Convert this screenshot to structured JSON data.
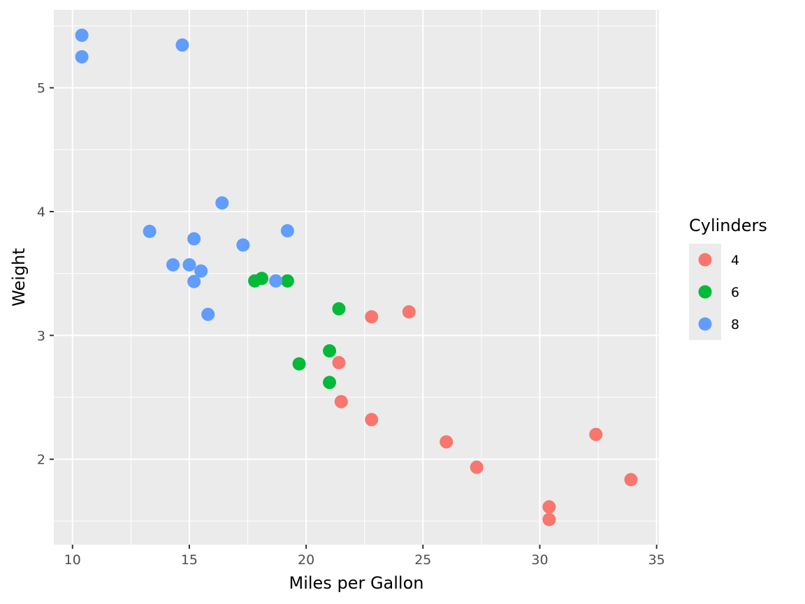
{
  "chart_data": {
    "type": "scatter",
    "xlabel": "Miles per Gallon",
    "ylabel": "Weight",
    "xlim": [
      9.2,
      35.1
    ],
    "ylim": [
      1.31,
      5.63
    ],
    "x_ticks": [
      10,
      15,
      20,
      25,
      30,
      35
    ],
    "y_ticks": [
      2,
      3,
      4,
      5
    ],
    "grid": true,
    "legend": {
      "title": "Cylinders",
      "position": "right"
    },
    "series": [
      {
        "name": "4",
        "color": "#F8766D",
        "points": [
          [
            22.8,
            2.32
          ],
          [
            24.4,
            3.19
          ],
          [
            22.8,
            3.15
          ],
          [
            32.4,
            2.2
          ],
          [
            30.4,
            1.615
          ],
          [
            33.9,
            1.835
          ],
          [
            21.5,
            2.465
          ],
          [
            27.3,
            1.935
          ],
          [
            26.0,
            2.14
          ],
          [
            30.4,
            1.513
          ],
          [
            21.4,
            2.78
          ]
        ]
      },
      {
        "name": "6",
        "color": "#00BA38",
        "points": [
          [
            21.0,
            2.62
          ],
          [
            21.0,
            2.875
          ],
          [
            21.4,
            3.215
          ],
          [
            18.1,
            3.46
          ],
          [
            19.2,
            3.44
          ],
          [
            17.8,
            3.44
          ],
          [
            19.7,
            2.77
          ]
        ]
      },
      {
        "name": "8",
        "color": "#619CFF",
        "points": [
          [
            18.7,
            3.44
          ],
          [
            14.3,
            3.57
          ],
          [
            16.4,
            4.07
          ],
          [
            17.3,
            3.73
          ],
          [
            15.2,
            3.78
          ],
          [
            10.4,
            5.25
          ],
          [
            10.4,
            5.424
          ],
          [
            14.7,
            5.345
          ],
          [
            15.5,
            3.52
          ],
          [
            15.2,
            3.435
          ],
          [
            13.3,
            3.84
          ],
          [
            19.2,
            3.845
          ],
          [
            15.8,
            3.17
          ],
          [
            15.0,
            3.57
          ]
        ]
      }
    ]
  }
}
